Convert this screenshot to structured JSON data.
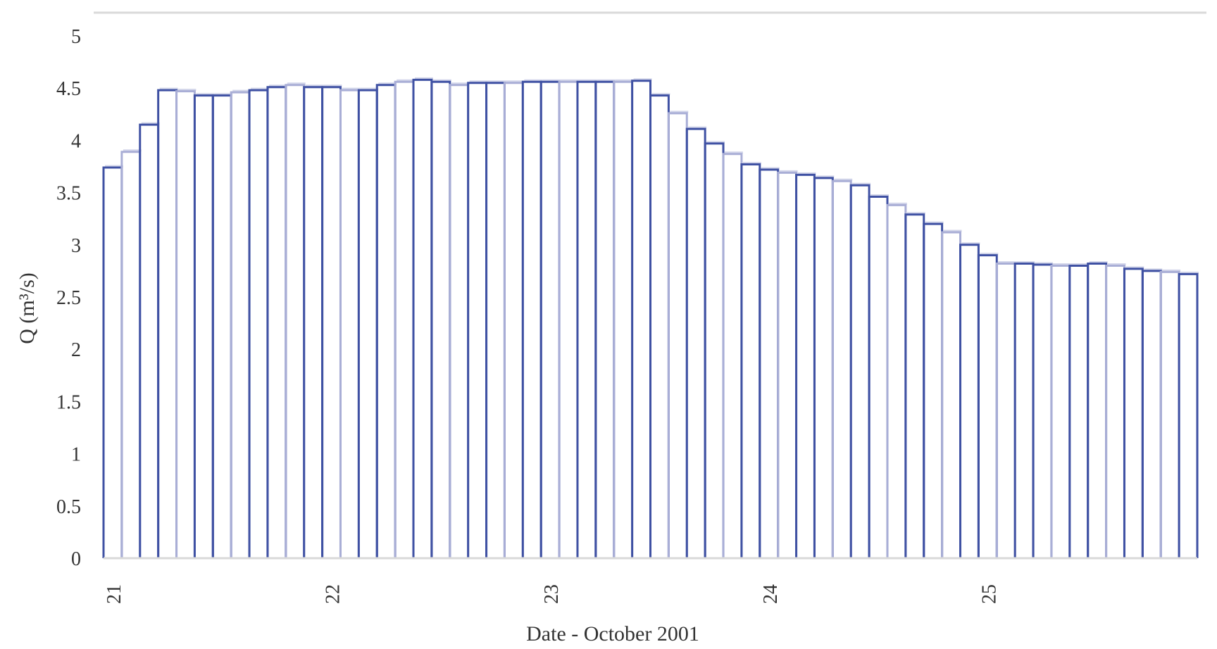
{
  "chart_data": {
    "type": "bar",
    "title": "",
    "xlabel": "Date - October 2001",
    "ylabel": "Q (m³/s)",
    "ylim": [
      0,
      5
    ],
    "yticks": [
      "0",
      "0.5",
      "1",
      "1.5",
      "2",
      "2.5",
      "3",
      "3.5",
      "4",
      "4.5",
      "5"
    ],
    "xticks": [
      {
        "label": "21",
        "day": 21
      },
      {
        "label": "22",
        "day": 22
      },
      {
        "label": "23",
        "day": 23
      },
      {
        "label": "24",
        "day": 24
      },
      {
        "label": "25",
        "day": 25
      }
    ],
    "grid": false,
    "bar_style": "outlined step bars",
    "colors": {
      "bar_dark": "#3f51a3",
      "bar_light": "#a9aed6",
      "bar_shadow": "#d3d6ea",
      "axis": "#d9d9d9",
      "text": "#333333"
    },
    "x_start": "2001-10-21 00:00",
    "x_end": "2001-10-25 24:00",
    "bar_interval_hours": 2,
    "series": [
      {
        "values": [
          3.74,
          3.89,
          4.15,
          4.48,
          4.47,
          4.43,
          4.43,
          4.46,
          4.48,
          4.51,
          4.53,
          4.51,
          4.51,
          4.48,
          4.48,
          4.53,
          4.56,
          4.58,
          4.56,
          4.53,
          4.55,
          4.55,
          4.55,
          4.56,
          4.56,
          4.56,
          4.56,
          4.56,
          4.56,
          4.57,
          4.43,
          4.26,
          4.11,
          3.97,
          3.87,
          3.77,
          3.72,
          3.69,
          3.67,
          3.64,
          3.61,
          3.57,
          3.46,
          3.38,
          3.29,
          3.2,
          3.12,
          3.0,
          2.9,
          2.82,
          2.82,
          2.81,
          2.8,
          2.8,
          2.82,
          2.8,
          2.77,
          2.75,
          2.74,
          2.72
        ]
      }
    ]
  }
}
